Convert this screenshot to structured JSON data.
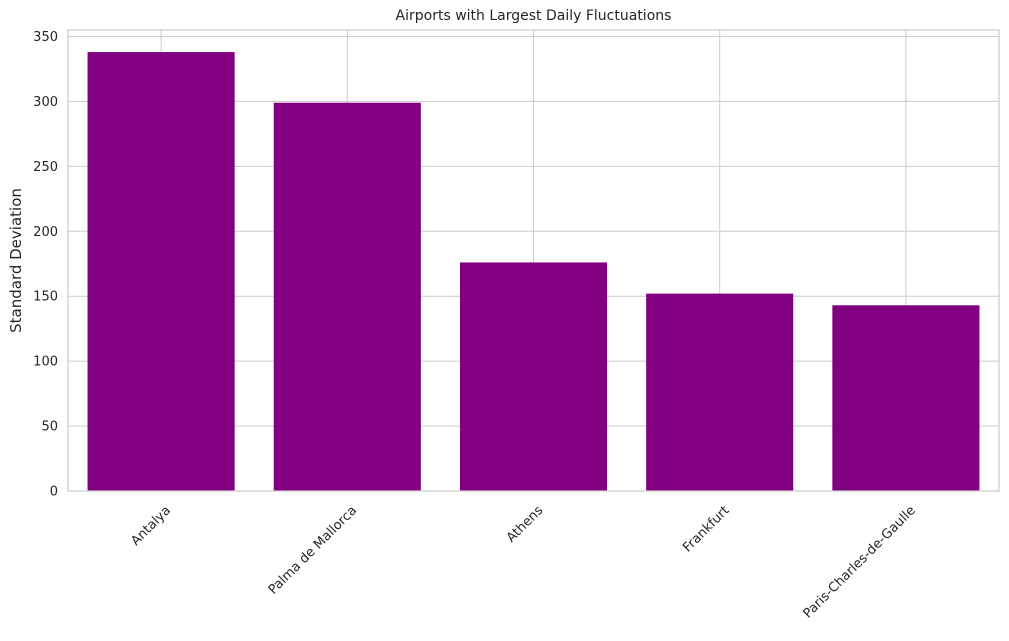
{
  "chart_data": {
    "type": "bar",
    "title": "Airports with Largest Daily Fluctuations",
    "xlabel": "",
    "ylabel": "Standard Deviation",
    "categories": [
      "Antalya",
      "Palma de Mallorca",
      "Athens",
      "Frankfurt",
      "Paris-Charles-de-Gaulle"
    ],
    "values": [
      338,
      299,
      176,
      152,
      143
    ],
    "ylim": [
      0,
      355
    ],
    "yticks": [
      0,
      50,
      100,
      150,
      200,
      250,
      300,
      350
    ],
    "bar_color": "#800080",
    "grid": true,
    "xtick_rotation_deg": 45
  }
}
